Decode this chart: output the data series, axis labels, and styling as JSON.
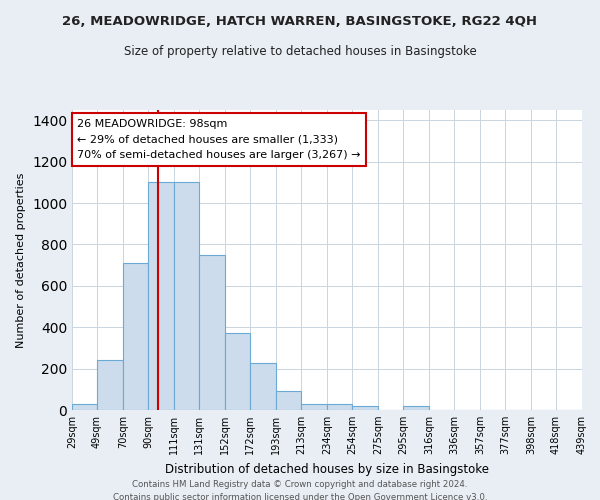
{
  "title": "26, MEADOWRIDGE, HATCH WARREN, BASINGSTOKE, RG22 4QH",
  "subtitle": "Size of property relative to detached houses in Basingstoke",
  "xlabel": "Distribution of detached houses by size in Basingstoke",
  "ylabel": "Number of detached properties",
  "bar_color": "#ccdcec",
  "bar_edge_color": "#6aaad4",
  "vline_x": 98,
  "vline_color": "#cc0000",
  "bin_edges": [
    29,
    49,
    70,
    90,
    111,
    131,
    152,
    172,
    193,
    213,
    234,
    254,
    275,
    295,
    316,
    336,
    357,
    377,
    398,
    418,
    439
  ],
  "bar_heights": [
    30,
    240,
    710,
    1100,
    1100,
    750,
    370,
    225,
    90,
    30,
    30,
    20,
    0,
    20,
    0,
    0,
    0,
    0,
    0,
    0
  ],
  "tick_labels": [
    "29sqm",
    "49sqm",
    "70sqm",
    "90sqm",
    "111sqm",
    "131sqm",
    "152sqm",
    "172sqm",
    "193sqm",
    "213sqm",
    "234sqm",
    "254sqm",
    "275sqm",
    "295sqm",
    "316sqm",
    "336sqm",
    "357sqm",
    "377sqm",
    "398sqm",
    "418sqm",
    "439sqm"
  ],
  "ylim": [
    0,
    1450
  ],
  "yticks": [
    0,
    200,
    400,
    600,
    800,
    1000,
    1200,
    1400
  ],
  "annotation_line1": "26 MEADOWRIDGE: 98sqm",
  "annotation_line2": "← 29% of detached houses are smaller (1,333)",
  "annotation_line3": "70% of semi-detached houses are larger (3,267) →",
  "annotation_box_color": "#ffffff",
  "annotation_box_edgecolor": "#cc0000",
  "footnote1": "Contains HM Land Registry data © Crown copyright and database right 2024.",
  "footnote2": "Contains public sector information licensed under the Open Government Licence v3.0.",
  "background_color": "#e8eef4",
  "plot_background_color": "#ffffff",
  "grid_color": "#c8d4de"
}
